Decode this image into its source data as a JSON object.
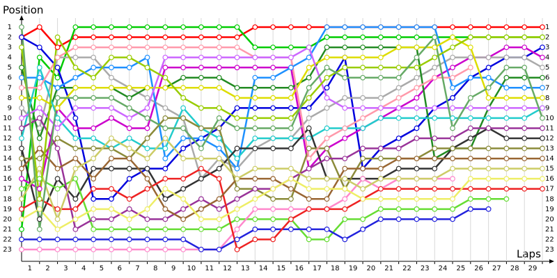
{
  "chart_data": {
    "type": "line",
    "title": "Position",
    "x_label": "Laps",
    "grid": true,
    "x": [
      0,
      1,
      2,
      3,
      4,
      5,
      6,
      7,
      8,
      9,
      10,
      11,
      12,
      13,
      14,
      15,
      16,
      17,
      18,
      19,
      20,
      21,
      22,
      23,
      24,
      25,
      26,
      27,
      28,
      29
    ],
    "xlim": [
      0,
      29
    ],
    "xticks": [
      1,
      2,
      3,
      4,
      5,
      6,
      7,
      8,
      9,
      10,
      11,
      12,
      13,
      14,
      15,
      16,
      17,
      18,
      19,
      20,
      21,
      22,
      23,
      24,
      25,
      26,
      27,
      28,
      29
    ],
    "ylim": [
      1,
      23
    ],
    "yticks": [
      1,
      2,
      3,
      4,
      5,
      6,
      7,
      8,
      9,
      10,
      11,
      12,
      13,
      14,
      15,
      16,
      17,
      18,
      19,
      20,
      21,
      22,
      23
    ],
    "series": [
      {
        "color": "#ff0000",
        "values": [
          2,
          1,
          3,
          2,
          2,
          2,
          2,
          2,
          2,
          2,
          2,
          2,
          2,
          1,
          1,
          1,
          1,
          1,
          1,
          1,
          1,
          1,
          1,
          1,
          1,
          1,
          1,
          1,
          1,
          1
        ]
      },
      {
        "color": "#00cc00",
        "values": [
          21,
          4,
          6,
          1,
          1,
          1,
          1,
          1,
          1,
          1,
          1,
          1,
          1,
          3,
          3,
          3,
          3,
          2,
          2,
          2,
          2,
          2,
          2,
          2,
          2,
          2,
          2,
          2,
          2,
          2
        ]
      },
      {
        "color": "#0000dd",
        "values": [
          2,
          3,
          5,
          10,
          18,
          18,
          16,
          15,
          15,
          13,
          12,
          11,
          9,
          9,
          9,
          9,
          9,
          7,
          4,
          15,
          13,
          12,
          11,
          9,
          8,
          6,
          5,
          4,
          4,
          3
        ]
      },
      {
        "color": "#cc00cc",
        "values": [
          16,
          17,
          9,
          11,
          11,
          10,
          11,
          11,
          5,
          5,
          5,
          5,
          5,
          5,
          5,
          5,
          15,
          13,
          12,
          11,
          10,
          9,
          8,
          6,
          5,
          4,
          4,
          3,
          3,
          4
        ]
      },
      {
        "color": "#aaaaaa",
        "values": [
          9,
          11,
          4,
          4,
          4,
          6,
          7,
          8,
          9,
          10,
          16,
          14,
          15,
          13,
          12,
          12,
          10,
          9,
          8,
          8,
          8,
          7,
          6,
          5,
          4,
          4,
          4,
          4,
          4,
          5
        ]
      },
      {
        "color": "#228b22",
        "values": [
          5,
          12,
          7,
          7,
          7,
          7,
          8,
          7,
          7,
          6,
          6,
          6,
          7,
          7,
          7,
          7,
          6,
          3,
          3,
          3,
          3,
          3,
          3,
          14,
          13,
          13,
          9,
          6,
          6,
          6
        ]
      },
      {
        "color": "#1e90ff",
        "values": [
          6,
          6,
          7,
          6,
          5,
          5,
          5,
          4,
          14,
          12,
          12,
          13,
          15,
          6,
          6,
          5,
          4,
          1,
          1,
          1,
          1,
          1,
          1,
          1,
          7,
          6,
          6,
          7,
          7,
          7
        ]
      },
      {
        "color": "#dddd00",
        "values": [
          8,
          8,
          9,
          7,
          7,
          7,
          7,
          7,
          7,
          7,
          7,
          7,
          8,
          8,
          8,
          8,
          5,
          4,
          4,
          4,
          4,
          3,
          3,
          3,
          2,
          3,
          8,
          8,
          8,
          8
        ]
      },
      {
        "color": "#22cccc",
        "values": [
          12,
          5,
          10,
          12,
          12,
          13,
          12,
          13,
          13,
          9,
          11,
          12,
          14,
          12,
          12,
          12,
          12,
          11,
          11,
          11,
          10,
          10,
          10,
          10,
          10,
          10,
          10,
          10,
          10,
          9
        ]
      },
      {
        "color": "#333333",
        "values": [
          13,
          20,
          16,
          18,
          15,
          15,
          15,
          15,
          18,
          17,
          16,
          15,
          13,
          13,
          13,
          13,
          11,
          16,
          16,
          16,
          16,
          15,
          15,
          15,
          13,
          12,
          11,
          12,
          12,
          12
        ]
      },
      {
        "color": "#8b8b3a",
        "values": [
          14,
          14,
          12,
          13,
          13,
          13,
          14,
          12,
          10,
          10,
          11,
          11,
          17,
          17,
          18,
          18,
          13,
          13,
          17,
          14,
          14,
          14,
          14,
          13,
          13,
          13,
          13,
          13,
          13,
          13
        ]
      },
      {
        "color": "#66dd33",
        "values": [
          17,
          16,
          17,
          16,
          21,
          21,
          21,
          21,
          21,
          21,
          21,
          21,
          20,
          20,
          20,
          20,
          22,
          22,
          20,
          20,
          19,
          19,
          19,
          19,
          19,
          18,
          18,
          18,
          null,
          null
        ]
      },
      {
        "color": "#ff88cc",
        "values": [
          23,
          23,
          23,
          23,
          23,
          23,
          23,
          23,
          23,
          23,
          23,
          23,
          21,
          19,
          19,
          19,
          19,
          19,
          18,
          16,
          17,
          16,
          16,
          16,
          16,
          null,
          null,
          null,
          null,
          null
        ]
      },
      {
        "color": "#993399",
        "values": [
          11,
          10,
          13,
          21,
          20,
          20,
          19,
          20,
          20,
          19,
          18,
          19,
          18,
          17,
          17,
          16,
          15,
          14,
          14,
          13,
          13,
          13,
          12,
          12,
          12,
          11,
          11,
          11,
          11,
          11
        ]
      },
      {
        "color": "#2222dd",
        "values": [
          22,
          22,
          22,
          22,
          22,
          22,
          22,
          22,
          22,
          22,
          23,
          23,
          22,
          21,
          21,
          21,
          21,
          21,
          22,
          21,
          20,
          20,
          20,
          20,
          20,
          19,
          19,
          null,
          null,
          null
        ]
      },
      {
        "color": "#ee2222",
        "values": [
          19,
          18,
          19,
          19,
          17,
          17,
          18,
          17,
          16,
          16,
          15,
          16,
          23,
          22,
          22,
          20,
          19,
          19,
          19,
          18,
          17,
          17,
          17,
          17,
          17,
          17,
          17,
          17,
          17,
          17
        ]
      },
      {
        "color": "#ff99aa",
        "values": [
          7,
          7,
          4,
          3,
          3,
          3,
          3,
          3,
          3,
          3,
          3,
          3,
          3,
          4,
          4,
          4,
          14,
          12,
          11,
          10,
          9,
          8,
          7,
          6,
          6,
          5,
          null,
          null,
          null,
          null
        ]
      },
      {
        "color": "#cc66ff",
        "values": [
          10,
          9,
          11,
          9,
          9,
          9,
          10,
          9,
          4,
          4,
          4,
          4,
          4,
          4,
          4,
          4,
          3,
          8,
          9,
          9,
          9,
          9,
          9,
          9,
          9,
          9,
          9,
          9,
          9,
          9
        ]
      },
      {
        "color": "#996633",
        "values": [
          15,
          13,
          15,
          14,
          16,
          14,
          14,
          16,
          19,
          20,
          19,
          18,
          16,
          16,
          16,
          17,
          18,
          18,
          15,
          15,
          15,
          14,
          14,
          14,
          14,
          14,
          14,
          14,
          14,
          14
        ]
      },
      {
        "color": "#cccc66",
        "values": [
          18,
          15,
          20,
          15,
          14,
          12,
          13,
          14,
          12,
          14,
          14,
          14,
          16,
          15,
          15,
          15,
          16,
          16,
          16,
          17,
          16,
          16,
          16,
          16,
          15,
          15,
          15,
          15,
          15,
          15
        ]
      },
      {
        "color": "#eeee66",
        "values": [
          20,
          19,
          21,
          20,
          19,
          19,
          20,
          19,
          17,
          18,
          20,
          20,
          19,
          18,
          17,
          16,
          17,
          17,
          17,
          18,
          18,
          18,
          18,
          18,
          18,
          16,
          16,
          16,
          16,
          16
        ]
      },
      {
        "color": "#99cc00",
        "values": [
          3,
          18,
          2,
          5,
          6,
          4,
          4,
          5,
          6,
          8,
          9,
          9,
          10,
          10,
          10,
          10,
          8,
          6,
          5,
          5,
          5,
          5,
          5,
          4,
          3,
          2,
          2,
          2,
          2,
          2
        ]
      },
      {
        "color": "#66aa66",
        "values": [
          1,
          21,
          8,
          8,
          8,
          8,
          9,
          10,
          11,
          11,
          13,
          10,
          11,
          11,
          11,
          11,
          7,
          5,
          6,
          6,
          6,
          6,
          4,
          2,
          11,
          8,
          7,
          5,
          5,
          10
        ]
      }
    ]
  }
}
